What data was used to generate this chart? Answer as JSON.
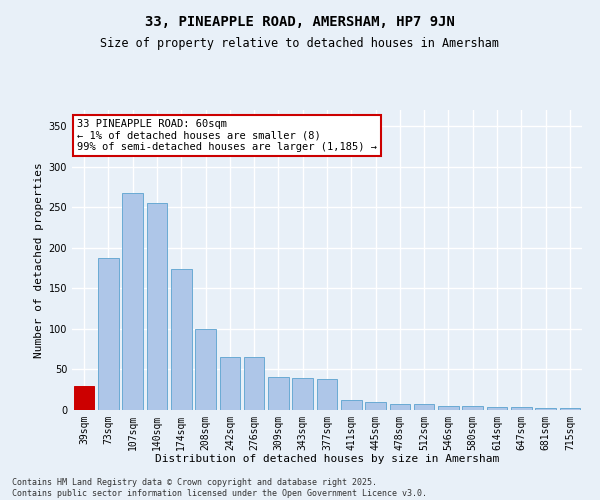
{
  "title_line1": "33, PINEAPPLE ROAD, AMERSHAM, HP7 9JN",
  "title_line2": "Size of property relative to detached houses in Amersham",
  "xlabel": "Distribution of detached houses by size in Amersham",
  "ylabel": "Number of detached properties",
  "categories": [
    "39sqm",
    "73sqm",
    "107sqm",
    "140sqm",
    "174sqm",
    "208sqm",
    "242sqm",
    "276sqm",
    "309sqm",
    "343sqm",
    "377sqm",
    "411sqm",
    "445sqm",
    "478sqm",
    "512sqm",
    "546sqm",
    "580sqm",
    "614sqm",
    "647sqm",
    "681sqm",
    "715sqm"
  ],
  "values": [
    30,
    188,
    268,
    255,
    174,
    100,
    65,
    65,
    41,
    40,
    38,
    12,
    10,
    8,
    7,
    5,
    5,
    4,
    4,
    2,
    3
  ],
  "bar_color": "#aec6e8",
  "bar_edge_color": "#6aaad4",
  "highlight_bar_index": 0,
  "highlight_color": "#cc0000",
  "highlight_edge_color": "#cc0000",
  "annotation_text_line1": "33 PINEAPPLE ROAD: 60sqm",
  "annotation_text_line2": "← 1% of detached houses are smaller (8)",
  "annotation_text_line3": "99% of semi-detached houses are larger (1,185) →",
  "annotation_fontsize": 7.5,
  "annotation_box_color": "white",
  "annotation_box_edge_color": "#cc0000",
  "ylim": [
    0,
    370
  ],
  "yticks": [
    0,
    50,
    100,
    150,
    200,
    250,
    300,
    350
  ],
  "bg_color": "#e8f0f8",
  "plot_bg_color": "#e8f0f8",
  "grid_color": "white",
  "footnote": "Contains HM Land Registry data © Crown copyright and database right 2025.\nContains public sector information licensed under the Open Government Licence v3.0.",
  "title_fontsize": 10,
  "subtitle_fontsize": 8.5,
  "xlabel_fontsize": 8,
  "ylabel_fontsize": 8,
  "tick_fontsize": 7,
  "footnote_fontsize": 6
}
